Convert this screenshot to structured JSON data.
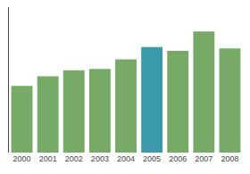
{
  "chart_data": {
    "type": "bar",
    "categories": [
      "2000",
      "2001",
      "2002",
      "2003",
      "2004",
      "2005",
      "2006",
      "2007",
      "2008"
    ],
    "values": [
      55,
      63,
      68,
      69,
      77,
      87,
      84,
      100,
      86
    ],
    "colors": [
      "#77aa66",
      "#77aa66",
      "#77aa66",
      "#77aa66",
      "#77aa66",
      "#3a9aaa",
      "#77aa66",
      "#77aa66",
      "#77aa66"
    ],
    "ylim": [
      0,
      120
    ],
    "yticks": [],
    "grid": false,
    "tick_labels": "x"
  }
}
